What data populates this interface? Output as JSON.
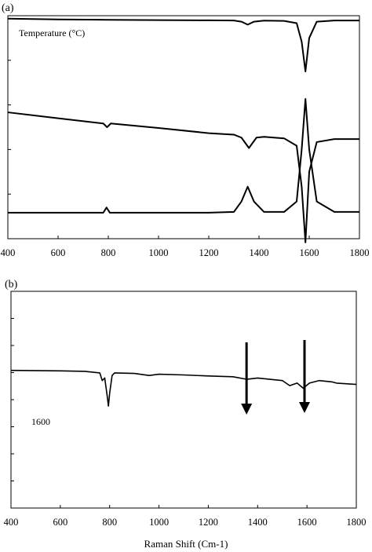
{
  "chart_data": [
    {
      "type": "line",
      "panel_label": "(a)",
      "title": "",
      "xlabel": "",
      "ylabel": "",
      "annotation": "Temperature (°C)",
      "xlim": [
        400,
        1800
      ],
      "x_ticks": [
        "400",
        "600",
        "800",
        "1000",
        "1200",
        "1400",
        "1600",
        "1800"
      ],
      "y_ticks_count": 5,
      "grid": false,
      "series": [
        {
          "x": [
            400,
            600,
            800,
            1000,
            1200,
            1300,
            1330,
            1355,
            1380,
            1420,
            1500,
            1550,
            1570,
            1585,
            1600,
            1630,
            1700,
            1800
          ],
          "y": [
            0.04,
            0.05,
            0.055,
            0.06,
            0.062,
            0.065,
            0.08,
            0.12,
            0.08,
            0.066,
            0.07,
            0.1,
            0.35,
            0.75,
            0.3,
            0.08,
            0.065,
            0.065
          ]
        },
        {
          "x": [
            400,
            600,
            780,
            795,
            810,
            1000,
            1200,
            1300,
            1330,
            1360,
            1390,
            1420,
            1500,
            1550,
            1570,
            1585,
            1600,
            1630,
            1700,
            1800
          ],
          "y": [
            1.3,
            1.38,
            1.45,
            1.5,
            1.45,
            1.51,
            1.58,
            1.6,
            1.64,
            1.78,
            1.64,
            1.63,
            1.65,
            1.75,
            2.3,
            3.05,
            2.1,
            1.7,
            1.66,
            1.66
          ]
        },
        {
          "x": [
            400,
            600,
            780,
            793,
            806,
            1000,
            1200,
            1300,
            1330,
            1355,
            1380,
            1420,
            1500,
            1550,
            1570,
            1585,
            1600,
            1630,
            1700,
            1800
          ],
          "y": [
            2.65,
            2.65,
            2.65,
            2.58,
            2.65,
            2.65,
            2.65,
            2.64,
            2.5,
            2.3,
            2.5,
            2.64,
            2.64,
            2.5,
            1.8,
            1.12,
            1.8,
            2.5,
            2.64,
            2.64
          ]
        }
      ],
      "ylim": [
        0,
        3
      ]
    },
    {
      "type": "line",
      "panel_label": "(b)",
      "title": "",
      "xlabel": "Raman Shift (Cm-1)",
      "ylabel": "",
      "annotation": "1600",
      "xlim": [
        400,
        1800
      ],
      "x_ticks": [
        "400",
        "600",
        "800",
        "1000",
        "1200",
        "1400",
        "1600",
        "1800"
      ],
      "y_ticks_count": 8,
      "grid": false,
      "arrows_at_x": [
        1355,
        1590
      ],
      "series": [
        {
          "x": [
            400,
            600,
            700,
            760,
            770,
            780,
            790,
            795,
            800,
            810,
            820,
            900,
            960,
            1000,
            1100,
            1200,
            1300,
            1355,
            1400,
            1450,
            1500,
            1530,
            1560,
            1585,
            1610,
            1650,
            1700,
            1720,
            1800
          ],
          "y": [
            0.6,
            0.62,
            0.64,
            0.7,
            1.0,
            0.9,
            1.6,
            2.0,
            1.5,
            0.8,
            0.7,
            0.72,
            0.8,
            0.75,
            0.78,
            0.82,
            0.85,
            0.95,
            0.9,
            0.95,
            1.0,
            1.2,
            1.1,
            1.3,
            1.1,
            1.0,
            1.05,
            1.1,
            1.15
          ]
        }
      ],
      "ylim": [
        -2.5,
        6
      ]
    }
  ]
}
